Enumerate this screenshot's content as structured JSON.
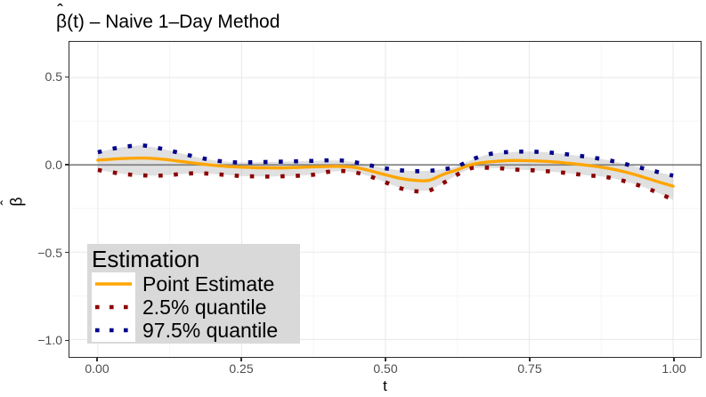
{
  "title": {
    "hat": "ˆ",
    "symbol": "β",
    "rest": "(t) – Naive 1–Day Method"
  },
  "axes": {
    "x": {
      "title": "t",
      "ticks": [
        {
          "label": "0.00",
          "value": 0
        },
        {
          "label": "0.25",
          "value": 0.25
        },
        {
          "label": "0.50",
          "value": 0.5
        },
        {
          "label": "0.75",
          "value": 0.75
        },
        {
          "label": "1.00",
          "value": 1
        }
      ]
    },
    "y": {
      "title_hat": "ˆ",
      "title_symbol": "β",
      "ticks": [
        {
          "label": "0.5",
          "value": 0.5
        },
        {
          "label": "0.0",
          "value": 0.0
        },
        {
          "label": "−0.5",
          "value": -0.5
        },
        {
          "label": "−1.0",
          "value": -1.0
        }
      ]
    }
  },
  "legend": {
    "title": "Estimation",
    "entries": [
      {
        "label": "Point Estimate",
        "color": "#FFA500",
        "style": "solid"
      },
      {
        "label": "2.5% quantile",
        "color": "#8B0000",
        "style": "dotted"
      },
      {
        "label": "97.5% quantile",
        "color": "#00008B",
        "style": "dotted"
      }
    ]
  },
  "colors": {
    "point_estimate": "#FFA500",
    "quantile_lower": "#8B0000",
    "quantile_upper": "#00008B",
    "ribbon_fill": "rgba(160,160,160,0.32)",
    "legend_background": "#D9D9D9",
    "zero_line": "#808080",
    "tick_text": "#4D4D4D",
    "grid_major": "#EBEBEB",
    "grid_minor": "#F5F5F5"
  },
  "chart_data": {
    "type": "line",
    "title": "β̂(t) – Naive 1-Day Method",
    "xlabel": "t",
    "ylabel": "β̂",
    "xlim": [
      0,
      1
    ],
    "ylim": [
      -1.09,
      0.7
    ],
    "grid": true,
    "legend_position": "inside bottom-left",
    "reference_line_y": 0,
    "x_major": [
      0,
      0.25,
      0.5,
      0.75,
      1
    ],
    "x_minor": [
      0.125,
      0.375,
      0.625,
      0.875
    ],
    "y_major": [
      0.5,
      0,
      -0.5,
      -1
    ],
    "y_minor": [
      0.25,
      -0.25,
      -0.75
    ],
    "x": [
      0,
      0.025,
      0.05,
      0.075,
      0.1,
      0.125,
      0.15,
      0.175,
      0.2,
      0.225,
      0.25,
      0.275,
      0.3,
      0.325,
      0.35,
      0.375,
      0.4,
      0.425,
      0.45,
      0.475,
      0.5,
      0.525,
      0.55,
      0.575,
      0.6,
      0.625,
      0.65,
      0.675,
      0.7,
      0.725,
      0.75,
      0.775,
      0.8,
      0.825,
      0.85,
      0.875,
      0.9,
      0.925,
      0.95,
      0.975,
      1
    ],
    "series": [
      {
        "name": "Point Estimate",
        "color": "#FFA500",
        "style": "solid",
        "values": [
          0.027,
          0.033,
          0.037,
          0.039,
          0.036,
          0.028,
          0.017,
          0.007,
          -0.002,
          -0.009,
          -0.013,
          -0.016,
          -0.017,
          -0.017,
          -0.014,
          -0.011,
          -0.009,
          -0.009,
          -0.016,
          -0.035,
          -0.057,
          -0.077,
          -0.088,
          -0.089,
          -0.055,
          -0.028,
          0.002,
          0.015,
          0.022,
          0.025,
          0.024,
          0.021,
          0.015,
          0.007,
          -0.002,
          -0.013,
          -0.028,
          -0.048,
          -0.072,
          -0.098,
          -0.122
        ]
      },
      {
        "name": "2.5% quantile",
        "color": "#8B0000",
        "style": "dotted",
        "values": [
          -0.029,
          -0.043,
          -0.054,
          -0.06,
          -0.062,
          -0.058,
          -0.051,
          -0.048,
          -0.052,
          -0.058,
          -0.064,
          -0.066,
          -0.067,
          -0.065,
          -0.062,
          -0.056,
          -0.04,
          -0.035,
          -0.045,
          -0.068,
          -0.1,
          -0.133,
          -0.15,
          -0.148,
          -0.105,
          -0.055,
          -0.018,
          -0.016,
          -0.02,
          -0.027,
          -0.03,
          -0.035,
          -0.042,
          -0.05,
          -0.06,
          -0.066,
          -0.08,
          -0.102,
          -0.128,
          -0.162,
          -0.2
        ]
      },
      {
        "name": "97.5% quantile",
        "color": "#00008B",
        "style": "dotted",
        "values": [
          0.072,
          0.092,
          0.105,
          0.112,
          0.1,
          0.082,
          0.062,
          0.042,
          0.027,
          0.017,
          0.014,
          0.015,
          0.017,
          0.019,
          0.021,
          0.023,
          0.026,
          0.025,
          0.013,
          -0.004,
          -0.02,
          -0.031,
          -0.036,
          -0.034,
          -0.026,
          -0.008,
          0.03,
          0.058,
          0.07,
          0.075,
          0.076,
          0.073,
          0.066,
          0.057,
          0.046,
          0.034,
          0.018,
          -0.002,
          -0.022,
          -0.042,
          -0.062
        ]
      }
    ],
    "ribbon": {
      "upper_series": "97.5% quantile",
      "lower_series": "2.5% quantile",
      "fill": "rgba(160,160,160,0.32)"
    }
  }
}
